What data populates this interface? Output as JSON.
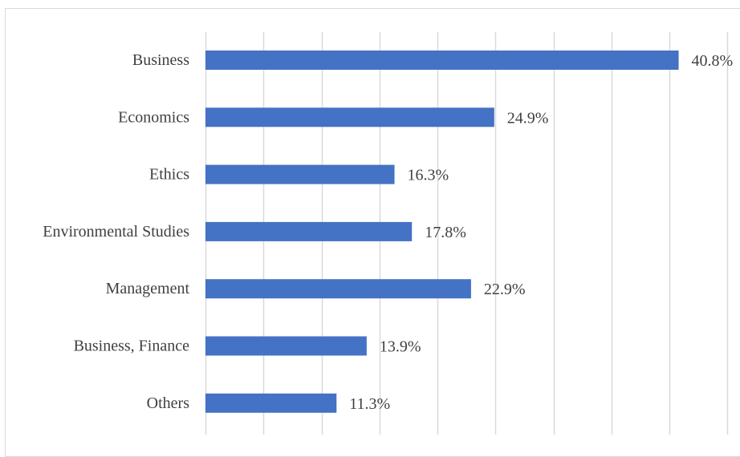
{
  "chart_data": {
    "type": "bar",
    "orientation": "horizontal",
    "title": "",
    "xlabel": "",
    "ylabel": "",
    "categories": [
      "Business",
      "Economics",
      "Ethics",
      "Environmental Studies",
      "Management",
      "Business, Finance",
      "Others"
    ],
    "values": [
      40.8,
      24.9,
      16.3,
      17.8,
      22.9,
      13.9,
      11.3
    ],
    "value_labels": [
      "40.8%",
      "24.9%",
      "16.3%",
      "17.8%",
      "22.9%",
      "13.9%",
      "11.3%"
    ],
    "xlim": [
      0,
      45
    ],
    "x_gridline_step": 5,
    "grid": true,
    "legend": "none",
    "colors": {
      "bar": "#4472C4",
      "grid": "#d9d9d9",
      "text": "#404040"
    }
  }
}
